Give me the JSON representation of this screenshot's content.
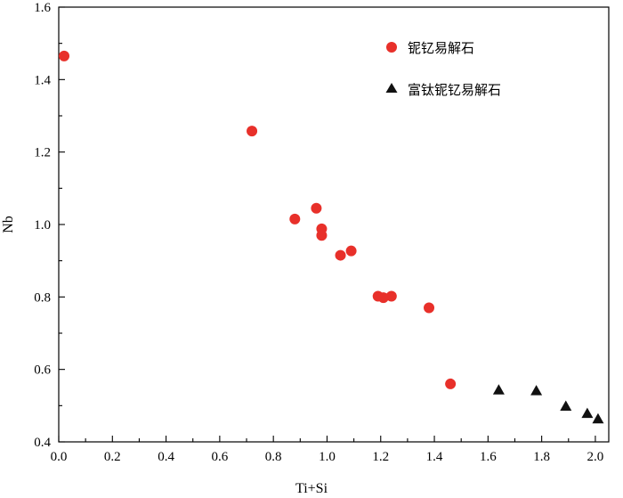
{
  "chart_data": {
    "type": "scatter",
    "xlabel": "Ti+Si",
    "ylabel": "Nb",
    "xlim": [
      0.0,
      2.05
    ],
    "ylim": [
      0.4,
      1.6
    ],
    "x_ticks": [
      "0.0",
      "0.2",
      "0.4",
      "0.6",
      "0.8",
      "1.0",
      "1.2",
      "1.4",
      "1.6",
      "1.8",
      "2.0"
    ],
    "y_ticks": [
      "0.4",
      "0.6",
      "0.8",
      "1.0",
      "1.2",
      "1.4",
      "1.6"
    ],
    "grid": false,
    "legend_position": "top-right",
    "series": [
      {
        "name": "铌钇易解石",
        "marker": "circle",
        "color": "#e8302a",
        "points": [
          [
            0.02,
            1.465
          ],
          [
            0.72,
            1.258
          ],
          [
            0.88,
            1.015
          ],
          [
            0.96,
            1.045
          ],
          [
            0.98,
            0.988
          ],
          [
            0.98,
            0.97
          ],
          [
            1.05,
            0.915
          ],
          [
            1.09,
            0.927
          ],
          [
            1.19,
            0.802
          ],
          [
            1.21,
            0.798
          ],
          [
            1.24,
            0.802
          ],
          [
            1.38,
            0.77
          ],
          [
            1.46,
            0.56
          ]
        ]
      },
      {
        "name": "富钛铌钇易解石",
        "marker": "triangle",
        "color": "#111111",
        "points": [
          [
            1.64,
            0.542
          ],
          [
            1.78,
            0.54
          ],
          [
            1.89,
            0.497
          ],
          [
            1.97,
            0.477
          ],
          [
            2.01,
            0.462
          ]
        ]
      }
    ]
  }
}
